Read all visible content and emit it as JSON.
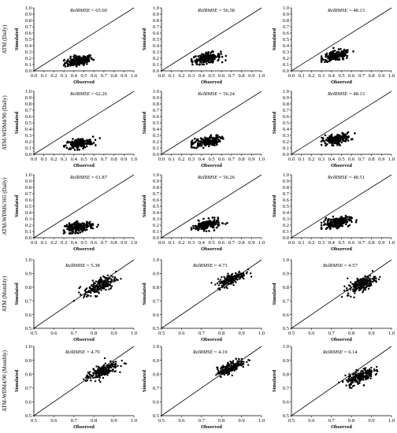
{
  "chart_data": {
    "type": "scatter",
    "xlabel": "Observed",
    "ylabel": "Simulated",
    "row_labels": [
      "ATM (Daily)",
      "ATM-WDM4/90 (Daily)",
      "ATM-WDM6/365 (Daily)",
      "ATM (Monthly)",
      "ATM-WDM4/90 (Monthly)"
    ],
    "metric_name": "RelRMSE",
    "daily_axis": {
      "min": 0.0,
      "max": 1.0,
      "ticks": [
        "0.0",
        "0.1",
        "0.2",
        "0.3",
        "0.4",
        "0.5",
        "0.6",
        "0.7",
        "0.8",
        "0.9",
        "1.0"
      ]
    },
    "monthly_axis": {
      "min": 0.5,
      "max": 1.0,
      "ticks": [
        "0.5",
        "0.6",
        "0.7",
        "0.8",
        "0.9",
        "1.0"
      ]
    },
    "one_to_one_line": true,
    "panels": [
      {
        "row": 0,
        "col": 0,
        "scale": "daily",
        "rel_rmse": "65.60",
        "cluster": {
          "x_center": 0.45,
          "x_spread": 0.07,
          "y_center": 0.16,
          "y_spread": 0.05,
          "x_range": [
            0.3,
            0.63
          ],
          "y_range": [
            0.07,
            0.26
          ],
          "slope": 0.25
        }
      },
      {
        "row": 0,
        "col": 1,
        "scale": "daily",
        "rel_rmse": "56.58",
        "cluster": {
          "x_center": 0.45,
          "x_spread": 0.07,
          "y_center": 0.2,
          "y_spread": 0.05,
          "x_range": [
            0.3,
            0.68
          ],
          "y_range": [
            0.1,
            0.32
          ],
          "slope": 0.25
        }
      },
      {
        "row": 0,
        "col": 2,
        "scale": "daily",
        "rel_rmse": "48.13",
        "cluster": {
          "x_center": 0.45,
          "x_spread": 0.07,
          "y_center": 0.24,
          "y_spread": 0.05,
          "x_range": [
            0.3,
            0.68
          ],
          "y_range": [
            0.14,
            0.37
          ],
          "slope": 0.25
        }
      },
      {
        "row": 1,
        "col": 0,
        "scale": "daily",
        "rel_rmse": "62.26",
        "cluster": {
          "x_center": 0.45,
          "x_spread": 0.07,
          "y_center": 0.17,
          "y_spread": 0.05,
          "x_range": [
            0.3,
            0.66
          ],
          "y_range": [
            0.07,
            0.28
          ],
          "slope": 0.25
        }
      },
      {
        "row": 1,
        "col": 1,
        "scale": "daily",
        "rel_rmse": "56.24",
        "cluster": {
          "x_center": 0.45,
          "x_spread": 0.07,
          "y_center": 0.2,
          "y_spread": 0.05,
          "x_range": [
            0.3,
            0.68
          ],
          "y_range": [
            0.1,
            0.32
          ],
          "slope": 0.25
        }
      },
      {
        "row": 1,
        "col": 2,
        "scale": "daily",
        "rel_rmse": "48.13",
        "cluster": {
          "x_center": 0.45,
          "x_spread": 0.07,
          "y_center": 0.24,
          "y_spread": 0.05,
          "x_range": [
            0.3,
            0.68
          ],
          "y_range": [
            0.14,
            0.37
          ],
          "slope": 0.25
        }
      },
      {
        "row": 2,
        "col": 0,
        "scale": "daily",
        "rel_rmse": "61.87",
        "cluster": {
          "x_center": 0.45,
          "x_spread": 0.07,
          "y_center": 0.17,
          "y_spread": 0.05,
          "x_range": [
            0.3,
            0.65
          ],
          "y_range": [
            0.07,
            0.28
          ],
          "slope": 0.25
        }
      },
      {
        "row": 2,
        "col": 1,
        "scale": "daily",
        "rel_rmse": "56.26",
        "cluster": {
          "x_center": 0.45,
          "x_spread": 0.07,
          "y_center": 0.2,
          "y_spread": 0.05,
          "x_range": [
            0.3,
            0.68
          ],
          "y_range": [
            0.1,
            0.32
          ],
          "slope": 0.25
        }
      },
      {
        "row": 2,
        "col": 2,
        "scale": "daily",
        "rel_rmse": "48.51",
        "cluster": {
          "x_center": 0.45,
          "x_spread": 0.07,
          "y_center": 0.24,
          "y_spread": 0.05,
          "x_range": [
            0.3,
            0.68
          ],
          "y_range": [
            0.14,
            0.37
          ],
          "slope": 0.25
        }
      },
      {
        "row": 3,
        "col": 0,
        "scale": "monthly",
        "rel_rmse": "5.38",
        "cluster": {
          "x_center": 0.83,
          "x_spread": 0.04,
          "y_center": 0.81,
          "y_spread": 0.035,
          "x_range": [
            0.7,
            0.96
          ],
          "y_range": [
            0.7,
            0.93
          ],
          "slope": 0.6
        }
      },
      {
        "row": 3,
        "col": 1,
        "scale": "monthly",
        "rel_rmse": "4.73",
        "cluster": {
          "x_center": 0.85,
          "x_spread": 0.035,
          "y_center": 0.86,
          "y_spread": 0.025,
          "x_range": [
            0.75,
            0.96
          ],
          "y_range": [
            0.78,
            0.93
          ],
          "slope": 0.6
        }
      },
      {
        "row": 3,
        "col": 2,
        "scale": "monthly",
        "rel_rmse": "4.57",
        "cluster": {
          "x_center": 0.85,
          "x_spread": 0.035,
          "y_center": 0.82,
          "y_spread": 0.03,
          "x_range": [
            0.75,
            0.97
          ],
          "y_range": [
            0.72,
            0.92
          ],
          "slope": 0.6
        }
      },
      {
        "row": 4,
        "col": 0,
        "scale": "monthly",
        "rel_rmse": "4.79",
        "cluster": {
          "x_center": 0.84,
          "x_spread": 0.04,
          "y_center": 0.82,
          "y_spread": 0.03,
          "x_range": [
            0.71,
            0.96
          ],
          "y_range": [
            0.71,
            0.92
          ],
          "slope": 0.6
        }
      },
      {
        "row": 4,
        "col": 1,
        "scale": "monthly",
        "rel_rmse": "4.19",
        "cluster": {
          "x_center": 0.85,
          "x_spread": 0.035,
          "y_center": 0.85,
          "y_spread": 0.025,
          "x_range": [
            0.75,
            0.96
          ],
          "y_range": [
            0.77,
            0.93
          ],
          "slope": 0.6
        }
      },
      {
        "row": 4,
        "col": 2,
        "scale": "monthly",
        "rel_rmse": "6.14",
        "cluster": {
          "x_center": 0.84,
          "x_spread": 0.035,
          "y_center": 0.78,
          "y_spread": 0.03,
          "x_range": [
            0.72,
            0.97
          ],
          "y_range": [
            0.68,
            0.9
          ],
          "slope": 0.6
        }
      }
    ]
  }
}
